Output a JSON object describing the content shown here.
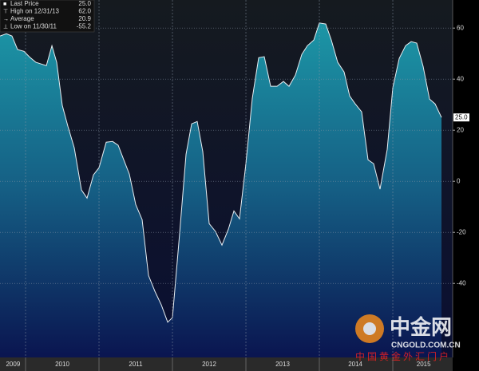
{
  "chart_data": {
    "type": "area",
    "x": [
      2009.652,
      2009.739,
      2009.815,
      2009.891,
      2009.978,
      2010.065,
      2010.141,
      2010.217,
      2010.283,
      2010.359,
      2010.424,
      2010.5,
      2010.576,
      2010.663,
      2010.761,
      2010.837,
      2010.924,
      2011.0,
      2011.098,
      2011.185,
      2011.261,
      2011.337,
      2011.413,
      2011.5,
      2011.587,
      2011.674,
      2011.761,
      2011.848,
      2011.935,
      2012.0,
      2012.098,
      2012.185,
      2012.261,
      2012.337,
      2012.413,
      2012.5,
      2012.587,
      2012.674,
      2012.761,
      2012.837,
      2012.913,
      2013.0,
      2013.087,
      2013.174,
      2013.25,
      2013.337,
      2013.424,
      2013.511,
      2013.587,
      2013.674,
      2013.761,
      2013.837,
      2013.924,
      2014.0,
      2014.087,
      2014.163,
      2014.25,
      2014.337,
      2014.413,
      2014.489,
      2014.576,
      2014.663,
      2014.739,
      2014.826,
      2014.924,
      2015.0,
      2015.087,
      2015.174,
      2015.25,
      2015.326,
      2015.413,
      2015.5,
      2015.576,
      2015.663
    ],
    "series": [
      {
        "color": "#1b8fa0",
        "values": [
          56.9,
          57.8,
          56.9,
          51.6,
          50.9,
          48.4,
          46.6,
          45.9,
          45.3,
          53.1,
          46.6,
          29.7,
          21.6,
          13.1,
          -3.4,
          -6.6,
          2.5,
          5.3,
          15.3,
          15.6,
          14.1,
          8.4,
          2.8,
          -9.1,
          -15.0,
          -36.9,
          -43.1,
          -48.4,
          -55.2,
          -53.4,
          -20.3,
          10.6,
          22.5,
          23.4,
          11.6,
          -16.6,
          -19.7,
          -25.0,
          -18.8,
          -11.6,
          -14.7,
          6.9,
          32.5,
          48.4,
          48.8,
          37.2,
          37.2,
          39.1,
          37.2,
          41.6,
          49.7,
          53.1,
          55.3,
          62.0,
          61.6,
          55.3,
          46.6,
          42.8,
          33.4,
          30.3,
          27.2,
          8.4,
          6.9,
          -3.1,
          12.5,
          36.6,
          48.1,
          53.1,
          54.7,
          54.1,
          45.0,
          32.2,
          30.3,
          25.0
        ]
      }
    ],
    "xlim": [
      2009.652,
      2015.815
    ],
    "xticks": [
      {
        "value": 2009.83,
        "label": "2009"
      },
      {
        "value": 2010.5,
        "label": "2010"
      },
      {
        "value": 2011.5,
        "label": "2011"
      },
      {
        "value": 2012.5,
        "label": "2012"
      },
      {
        "value": 2013.5,
        "label": "2013"
      },
      {
        "value": 2014.49,
        "label": "2014"
      },
      {
        "value": 2015.42,
        "label": "2015"
      }
    ],
    "xgrid": [
      2010,
      2011,
      2012,
      2013,
      2014,
      2015
    ],
    "ylim": [
      -69,
      71
    ],
    "yticks": [
      -40,
      -20,
      0,
      20,
      40,
      60
    ],
    "grid": true,
    "stats": [
      {
        "name": "Last Price",
        "text": "25.0"
      },
      {
        "name": "High on 12/31/13",
        "text": "62.0"
      },
      {
        "name": "Average",
        "text": "20.9"
      },
      {
        "name": "Low on 11/30/11",
        "text": "-55.2"
      }
    ],
    "watermark": {
      "logo": "中金网",
      "site": "CNGOLD.COM.CN",
      "slogan": "中国黄金外汇门户"
    }
  }
}
